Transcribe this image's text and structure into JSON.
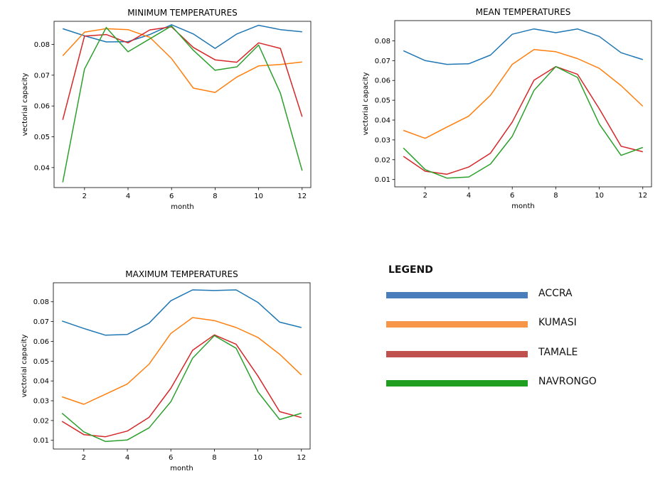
{
  "chart_data": [
    {
      "type": "line",
      "title": "MINIMUM TEMPERATURES",
      "xlabel": "month",
      "ylabel": "vectorial capacity",
      "xlim": [
        0.6,
        12.4
      ],
      "ylim": [
        0.0335,
        0.0875
      ],
      "xticks": [
        2,
        4,
        6,
        8,
        10,
        12
      ],
      "yticks": [
        0.04,
        0.05,
        0.06,
        0.07,
        0.08
      ],
      "yticklabels": [
        "0.04",
        "0.05",
        "0.06",
        "0.07",
        "0.08"
      ],
      "x": [
        1,
        2,
        3,
        4,
        5,
        6,
        7,
        8,
        9,
        10,
        11,
        12
      ],
      "series": [
        {
          "name": "ACCRA",
          "color": "#1f77b4",
          "values": [
            0.0851,
            0.0828,
            0.0808,
            0.0809,
            0.0832,
            0.0864,
            0.0834,
            0.0787,
            0.0834,
            0.0862,
            0.0848,
            0.0841
          ]
        },
        {
          "name": "KUMASI",
          "color": "#ff7f0e",
          "values": [
            0.0763,
            0.084,
            0.0851,
            0.0848,
            0.0823,
            0.0754,
            0.0658,
            0.0644,
            0.0694,
            0.073,
            0.0735,
            0.0743
          ]
        },
        {
          "name": "TAMALE",
          "color": "#d62728",
          "values": [
            0.0555,
            0.0827,
            0.0832,
            0.0805,
            0.0847,
            0.0857,
            0.079,
            0.075,
            0.0742,
            0.0805,
            0.0787,
            0.0565
          ]
        },
        {
          "name": "NAVRONGO",
          "color": "#2ca02c",
          "values": [
            0.0352,
            0.072,
            0.0855,
            0.0776,
            0.0818,
            0.086,
            0.0781,
            0.0716,
            0.0727,
            0.0798,
            0.0642,
            0.039
          ]
        }
      ]
    },
    {
      "type": "line",
      "title": "MEAN TEMPERATURES",
      "xlabel": "month",
      "ylabel": "vectorial capacity",
      "xlim": [
        0.6,
        12.4
      ],
      "ylim": [
        0.0063,
        0.0902
      ],
      "xticks": [
        2,
        4,
        6,
        8,
        10,
        12
      ],
      "yticks": [
        0.01,
        0.02,
        0.03,
        0.04,
        0.05,
        0.06,
        0.07,
        0.08
      ],
      "yticklabels": [
        "0.01",
        "0.02",
        "0.03",
        "0.04",
        "0.05",
        "0.06",
        "0.07",
        "0.08"
      ],
      "x": [
        1,
        2,
        3,
        4,
        5,
        6,
        7,
        8,
        9,
        10,
        11,
        12
      ],
      "series": [
        {
          "name": "ACCRA",
          "color": "#1f77b4",
          "values": [
            0.075,
            0.07,
            0.0681,
            0.0684,
            0.0728,
            0.0833,
            0.086,
            0.0841,
            0.086,
            0.0822,
            0.074,
            0.0705
          ]
        },
        {
          "name": "KUMASI",
          "color": "#ff7f0e",
          "values": [
            0.0348,
            0.0308,
            0.0365,
            0.042,
            0.0525,
            0.0681,
            0.0756,
            0.0745,
            0.071,
            0.0661,
            0.0574,
            0.047
          ]
        },
        {
          "name": "TAMALE",
          "color": "#d62728",
          "values": [
            0.0217,
            0.0142,
            0.0127,
            0.0163,
            0.0233,
            0.039,
            0.0601,
            0.067,
            0.0631,
            0.0457,
            0.0268,
            0.024
          ]
        },
        {
          "name": "NAVRONGO",
          "color": "#2ca02c",
          "values": [
            0.0259,
            0.015,
            0.0107,
            0.0113,
            0.0178,
            0.0318,
            0.055,
            0.067,
            0.0615,
            0.038,
            0.0222,
            0.0262
          ]
        }
      ]
    },
    {
      "type": "line",
      "title": "MAXIMUM TEMPERATURES",
      "xlabel": "month",
      "ylabel": "vectorial capacity",
      "xlim": [
        0.6,
        12.4
      ],
      "ylim": [
        0.0056,
        0.0896
      ],
      "xticks": [
        2,
        4,
        6,
        8,
        10,
        12
      ],
      "yticks": [
        0.01,
        0.02,
        0.03,
        0.04,
        0.05,
        0.06,
        0.07,
        0.08
      ],
      "yticklabels": [
        "0.01",
        "0.02",
        "0.03",
        "0.04",
        "0.05",
        "0.06",
        "0.07",
        "0.08"
      ],
      "x": [
        1,
        2,
        3,
        4,
        5,
        6,
        7,
        8,
        9,
        10,
        11,
        12
      ],
      "series": [
        {
          "name": "ACCRA",
          "color": "#1f77b4",
          "values": [
            0.0703,
            0.0665,
            0.0631,
            0.0635,
            0.0692,
            0.0805,
            0.086,
            0.0857,
            0.086,
            0.0797,
            0.0697,
            0.067
          ]
        },
        {
          "name": "KUMASI",
          "color": "#ff7f0e",
          "values": [
            0.032,
            0.0282,
            0.0333,
            0.0385,
            0.0485,
            0.064,
            0.072,
            0.0705,
            0.067,
            0.062,
            0.0535,
            0.043
          ]
        },
        {
          "name": "TAMALE",
          "color": "#d62728",
          "values": [
            0.0196,
            0.0129,
            0.0118,
            0.0147,
            0.0216,
            0.0363,
            0.0555,
            0.0633,
            0.0585,
            0.0425,
            0.0245,
            0.0215
          ]
        },
        {
          "name": "NAVRONGO",
          "color": "#2ca02c",
          "values": [
            0.0237,
            0.0143,
            0.0094,
            0.0102,
            0.0163,
            0.0295,
            0.0515,
            0.0629,
            0.0565,
            0.0345,
            0.0205,
            0.0237
          ]
        }
      ]
    }
  ],
  "legend": {
    "title": "LEGEND",
    "items": [
      {
        "label": "ACCRA",
        "color": "#4a7ebb"
      },
      {
        "label": "KUMASI",
        "color": "#f79646"
      },
      {
        "label": "TAMALE",
        "color": "#c0504d"
      },
      {
        "label": "NAVRONGO",
        "color": "#1f9e1f"
      }
    ]
  }
}
